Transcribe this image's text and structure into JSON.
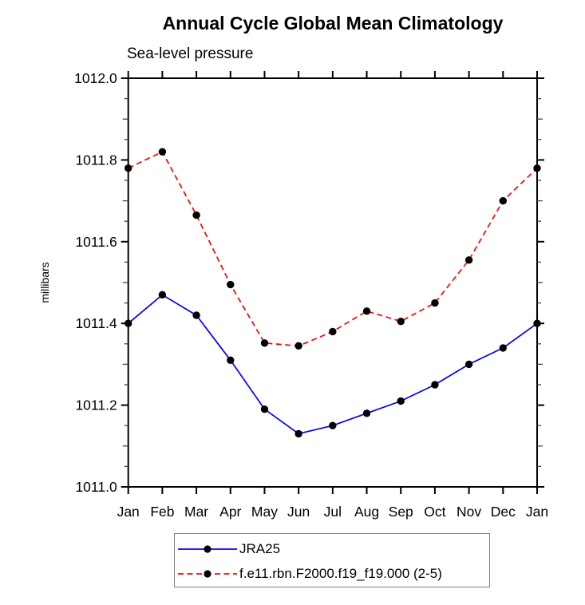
{
  "chart_data": {
    "type": "line",
    "title": "Annual Cycle Global Mean Climatology",
    "subtitle": "Sea-level pressure",
    "ylabel": "millibars",
    "xlabel": "",
    "categories": [
      "Jan",
      "Feb",
      "Mar",
      "Apr",
      "May",
      "Jun",
      "Jul",
      "Aug",
      "Sep",
      "Oct",
      "Nov",
      "Dec",
      "Jan"
    ],
    "ylim": [
      1011.0,
      1012.0
    ],
    "ytick_major_step": 0.2,
    "ytick_minor_step": 0.05,
    "ytick_labels": [
      "1011.0",
      "1011.2",
      "1011.4",
      "1011.6",
      "1011.8",
      "1012.0"
    ],
    "grid": false,
    "legend_position": "bottom-center",
    "axis_style": "closed-box-outward-ticks",
    "series": [
      {
        "name": "JRA25",
        "color": "#0000ff",
        "line_style": "solid",
        "marker": "filled-circle",
        "marker_color": "#000000",
        "values": [
          1011.4,
          1011.47,
          1011.42,
          1011.31,
          1011.19,
          1011.13,
          1011.15,
          1011.18,
          1011.21,
          1011.25,
          1011.3,
          1011.34,
          1011.4
        ]
      },
      {
        "name": "f.e11.rbn.F2000.f19_f19.000 (2-5)",
        "color": "#ff0000",
        "line_style": "dashed",
        "marker": "filled-circle",
        "marker_color": "#000000",
        "values": [
          1011.78,
          1011.82,
          1011.665,
          1011.495,
          1011.352,
          1011.345,
          1011.38,
          1011.43,
          1011.405,
          1011.45,
          1011.555,
          1011.7,
          1011.78
        ]
      }
    ]
  }
}
